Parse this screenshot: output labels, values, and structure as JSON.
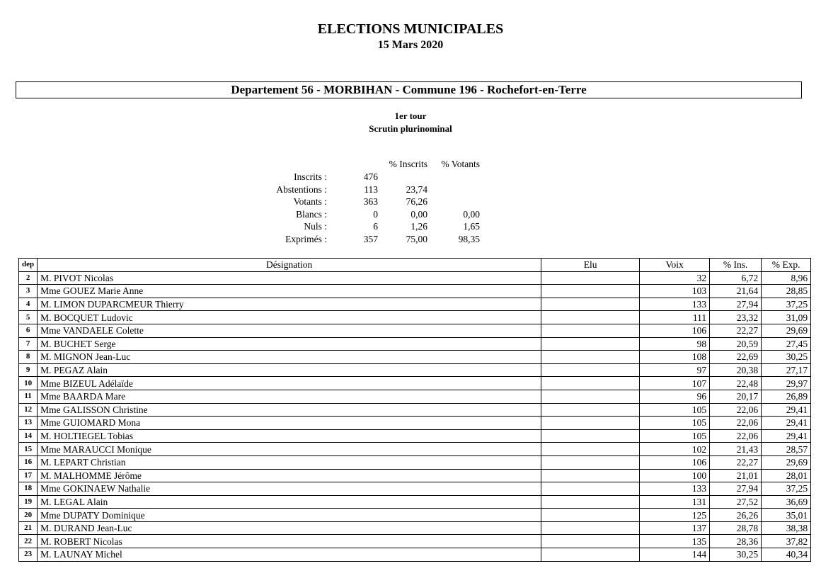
{
  "header": {
    "title": "ELECTIONS MUNICIPALES",
    "date": "15 Mars 2020",
    "commune": "Departement 56 - MORBIHAN - Commune 196 - Rochefort-en-Terre",
    "tour": "1er tour",
    "scrutin": "Scrutin plurinominal"
  },
  "stats": {
    "col_inscrits": "% Inscrits",
    "col_votants": "% Votants",
    "rows": [
      {
        "label": "Inscrits :",
        "value": "476",
        "pct_inscrits": "",
        "pct_votants": ""
      },
      {
        "label": "Abstentions :",
        "value": "113",
        "pct_inscrits": "23,74",
        "pct_votants": ""
      },
      {
        "label": "Votants :",
        "value": "363",
        "pct_inscrits": "76,26",
        "pct_votants": ""
      },
      {
        "label": "Blancs :",
        "value": "0",
        "pct_inscrits": "0,00",
        "pct_votants": "0,00"
      },
      {
        "label": "Nuls :",
        "value": "6",
        "pct_inscrits": "1,26",
        "pct_votants": "1,65"
      },
      {
        "label": "Exprimés :",
        "value": "357",
        "pct_inscrits": "75,00",
        "pct_votants": "98,35"
      }
    ]
  },
  "table": {
    "headers": {
      "dep": "dep",
      "designation": "Désignation",
      "elu": "Elu",
      "voix": "Voix",
      "pct_ins": "% Ins.",
      "pct_exp": "% Exp."
    },
    "rows": [
      {
        "dep": "2",
        "name": "M. PIVOT Nicolas",
        "elu": "",
        "voix": "32",
        "ins": "6,72",
        "exp": "8,96"
      },
      {
        "dep": "3",
        "name": "Mme GOUEZ Marie Anne",
        "elu": "",
        "voix": "103",
        "ins": "21,64",
        "exp": "28,85"
      },
      {
        "dep": "4",
        "name": "M. LIMON DUPARCMEUR Thierry",
        "elu": "",
        "voix": "133",
        "ins": "27,94",
        "exp": "37,25"
      },
      {
        "dep": "5",
        "name": "M. BOCQUET Ludovic",
        "elu": "",
        "voix": "111",
        "ins": "23,32",
        "exp": "31,09"
      },
      {
        "dep": "6",
        "name": "Mme VANDAELE Colette",
        "elu": "",
        "voix": "106",
        "ins": "22,27",
        "exp": "29,69"
      },
      {
        "dep": "7",
        "name": "M. BUCHET Serge",
        "elu": "",
        "voix": "98",
        "ins": "20,59",
        "exp": "27,45"
      },
      {
        "dep": "8",
        "name": "M. MIGNON Jean-Luc",
        "elu": "",
        "voix": "108",
        "ins": "22,69",
        "exp": "30,25"
      },
      {
        "dep": "9",
        "name": "M. PEGAZ Alain",
        "elu": "",
        "voix": "97",
        "ins": "20,38",
        "exp": "27,17"
      },
      {
        "dep": "10",
        "name": "Mme BIZEUL Adélaïde",
        "elu": "",
        "voix": "107",
        "ins": "22,48",
        "exp": "29,97"
      },
      {
        "dep": "11",
        "name": "Mme BAARDA Mare",
        "elu": "",
        "voix": "96",
        "ins": "20,17",
        "exp": "26,89"
      },
      {
        "dep": "12",
        "name": "Mme GALISSON Christine",
        "elu": "",
        "voix": "105",
        "ins": "22,06",
        "exp": "29,41"
      },
      {
        "dep": "13",
        "name": "Mme GUIOMARD Mona",
        "elu": "",
        "voix": "105",
        "ins": "22,06",
        "exp": "29,41"
      },
      {
        "dep": "14",
        "name": "M. HOLTIEGEL Tobias",
        "elu": "",
        "voix": "105",
        "ins": "22,06",
        "exp": "29,41"
      },
      {
        "dep": "15",
        "name": "Mme MARAUCCI Monique",
        "elu": "",
        "voix": "102",
        "ins": "21,43",
        "exp": "28,57"
      },
      {
        "dep": "16",
        "name": "M. LEPART Christian",
        "elu": "",
        "voix": "106",
        "ins": "22,27",
        "exp": "29,69"
      },
      {
        "dep": "17",
        "name": "M. MALHOMME Jérôme",
        "elu": "",
        "voix": "100",
        "ins": "21,01",
        "exp": "28,01"
      },
      {
        "dep": "18",
        "name": "Mme GOKINAEW Nathalie",
        "elu": "",
        "voix": "133",
        "ins": "27,94",
        "exp": "37,25"
      },
      {
        "dep": "19",
        "name": "M. LEGAL Alain",
        "elu": "",
        "voix": "131",
        "ins": "27,52",
        "exp": "36,69"
      },
      {
        "dep": "20",
        "name": "Mme DUPATY Dominique",
        "elu": "",
        "voix": "125",
        "ins": "26,26",
        "exp": "35,01"
      },
      {
        "dep": "21",
        "name": "M. DURAND Jean-Luc",
        "elu": "",
        "voix": "137",
        "ins": "28,78",
        "exp": "38,38"
      },
      {
        "dep": "22",
        "name": "M. ROBERT Nicolas",
        "elu": "",
        "voix": "135",
        "ins": "28,36",
        "exp": "37,82"
      },
      {
        "dep": "23",
        "name": "M. LAUNAY Michel",
        "elu": "",
        "voix": "144",
        "ins": "30,25",
        "exp": "40,34"
      }
    ]
  }
}
